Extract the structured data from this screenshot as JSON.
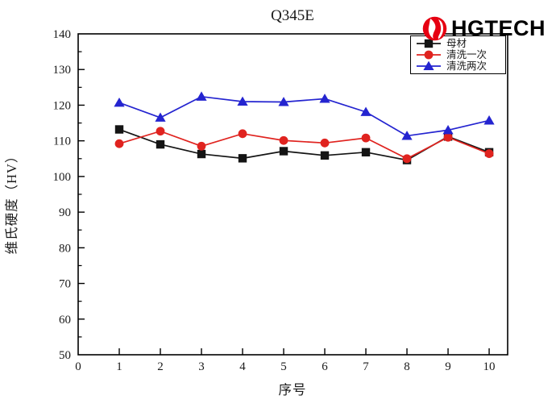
{
  "logo": {
    "text": "HGTECH",
    "icon": "hgtech-logo-icon",
    "icon_color": "#e60012",
    "text_color": "#111111"
  },
  "chart_data": {
    "type": "line",
    "title": "Q345E",
    "xlabel": "序号",
    "ylabel": "维氏硬度（HV）",
    "xlim": [
      0,
      10.45
    ],
    "ylim": [
      50,
      140
    ],
    "x_ticks": [
      0,
      1,
      2,
      3,
      4,
      5,
      6,
      7,
      8,
      9,
      10
    ],
    "y_ticks": [
      50,
      60,
      70,
      80,
      90,
      100,
      110,
      120,
      130,
      140
    ],
    "y_minor_step": 5,
    "grid": false,
    "legend_position": "top-right-inside",
    "frame_color": "#000000",
    "x": [
      1,
      2,
      3,
      4,
      5,
      6,
      7,
      8,
      9,
      10
    ],
    "series": [
      {
        "name": "母材",
        "marker": "square",
        "color": "#141414",
        "values": [
          113.2,
          109.0,
          106.3,
          105.1,
          107.1,
          105.9,
          106.8,
          104.6,
          111.2,
          106.8
        ]
      },
      {
        "name": "清洗一次",
        "marker": "circle",
        "color": "#e0231f",
        "values": [
          109.2,
          112.7,
          108.5,
          112.0,
          110.1,
          109.4,
          110.8,
          105.0,
          111.0,
          106.4
        ]
      },
      {
        "name": "清洗两次",
        "marker": "triangle-up",
        "color": "#2424d0",
        "values": [
          120.7,
          116.5,
          122.4,
          121.0,
          120.9,
          121.8,
          118.1,
          111.4,
          113.0,
          115.7
        ]
      }
    ]
  }
}
